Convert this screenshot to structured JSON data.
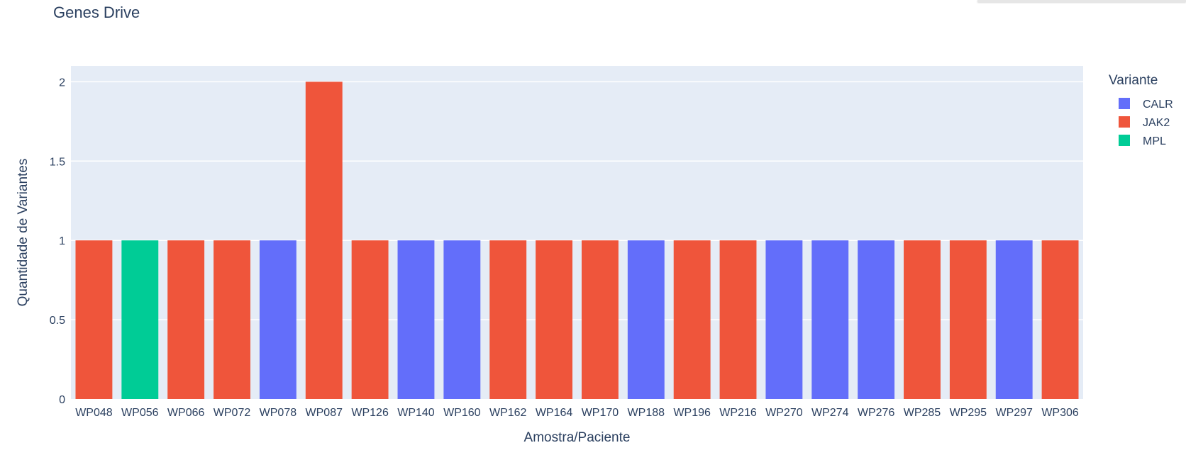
{
  "chart_data": {
    "type": "bar",
    "title": "Genes Drive",
    "xlabel": "Amostra/Paciente",
    "ylabel": "Quantidade de Variantes",
    "categories": [
      "WP048",
      "WP056",
      "WP066",
      "WP072",
      "WP078",
      "WP087",
      "WP126",
      "WP140",
      "WP160",
      "WP162",
      "WP164",
      "WP170",
      "WP188",
      "WP196",
      "WP216",
      "WP270",
      "WP274",
      "WP276",
      "WP285",
      "WP295",
      "WP297",
      "WP306"
    ],
    "values": [
      1,
      1,
      1,
      1,
      1,
      2,
      1,
      1,
      1,
      1,
      1,
      1,
      1,
      1,
      1,
      1,
      1,
      1,
      1,
      1,
      1,
      1
    ],
    "variant": [
      "JAK2",
      "MPL",
      "JAK2",
      "JAK2",
      "CALR",
      "JAK2",
      "JAK2",
      "CALR",
      "CALR",
      "JAK2",
      "JAK2",
      "JAK2",
      "CALR",
      "JAK2",
      "JAK2",
      "CALR",
      "CALR",
      "CALR",
      "JAK2",
      "JAK2",
      "CALR",
      "JAK2"
    ],
    "ylim": [
      0,
      2.1
    ],
    "yticks": [
      0,
      0.5,
      1,
      1.5,
      2
    ],
    "ytick_labels": [
      "0",
      "0.5",
      "1",
      "1.5",
      "2"
    ],
    "grid": true,
    "legend": {
      "title": "Variante",
      "placement": "right",
      "entries": [
        {
          "name": "CALR",
          "color": "#636efa"
        },
        {
          "name": "JAK2",
          "color": "#ef553b"
        },
        {
          "name": "MPL",
          "color": "#00cc96"
        }
      ]
    },
    "colors": {
      "plot_bg": "#e5ecf6",
      "grid": "#ffffff",
      "text": "#2a3f5f"
    }
  }
}
